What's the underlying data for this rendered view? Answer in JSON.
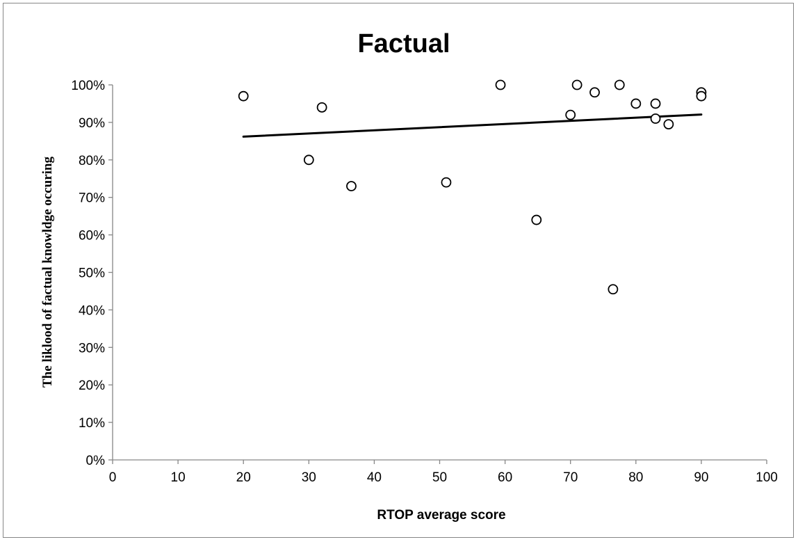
{
  "chart_data": {
    "type": "scatter",
    "title": "Factual",
    "xlabel": "RTOP average score",
    "ylabel": "The liklood of factual knowldge occuring",
    "xlim": [
      0,
      100
    ],
    "ylim": [
      0,
      1
    ],
    "x_ticks": [
      0,
      10,
      20,
      30,
      40,
      50,
      60,
      70,
      80,
      90,
      100
    ],
    "x_tick_labels": [
      "0",
      "10",
      "20",
      "30",
      "40",
      "50",
      "60",
      "70",
      "80",
      "90",
      "100"
    ],
    "y_ticks": [
      0,
      0.1,
      0.2,
      0.3,
      0.4,
      0.5,
      0.6,
      0.7,
      0.8,
      0.9,
      1.0
    ],
    "y_tick_labels": [
      "0%",
      "10%",
      "20%",
      "30%",
      "40%",
      "50%",
      "60%",
      "70%",
      "80%",
      "90%",
      "100%"
    ],
    "grid": false,
    "legend": "none",
    "marker": "open-circle",
    "series": [
      {
        "points": [
          {
            "x": 20,
            "y": 0.97
          },
          {
            "x": 30,
            "y": 0.8
          },
          {
            "x": 32,
            "y": 0.94
          },
          {
            "x": 36.5,
            "y": 0.73
          },
          {
            "x": 51,
            "y": 0.74
          },
          {
            "x": 59.3,
            "y": 1.0
          },
          {
            "x": 64.8,
            "y": 0.64
          },
          {
            "x": 70,
            "y": 0.92
          },
          {
            "x": 71,
            "y": 1.0
          },
          {
            "x": 73.7,
            "y": 0.98
          },
          {
            "x": 76.5,
            "y": 0.455
          },
          {
            "x": 77.5,
            "y": 1.0
          },
          {
            "x": 80,
            "y": 0.95
          },
          {
            "x": 83,
            "y": 0.95
          },
          {
            "x": 83,
            "y": 0.91
          },
          {
            "x": 85,
            "y": 0.895
          },
          {
            "x": 90,
            "y": 0.98
          },
          {
            "x": 90,
            "y": 0.97
          }
        ]
      }
    ],
    "trendline": {
      "type": "linear",
      "x": [
        20,
        90
      ],
      "y": [
        0.862,
        0.921
      ]
    },
    "colors": {
      "marker_stroke": "#000000",
      "marker_fill": "#ffffff",
      "trendline": "#000000",
      "axis": "#868686",
      "frame": "#868686"
    }
  }
}
